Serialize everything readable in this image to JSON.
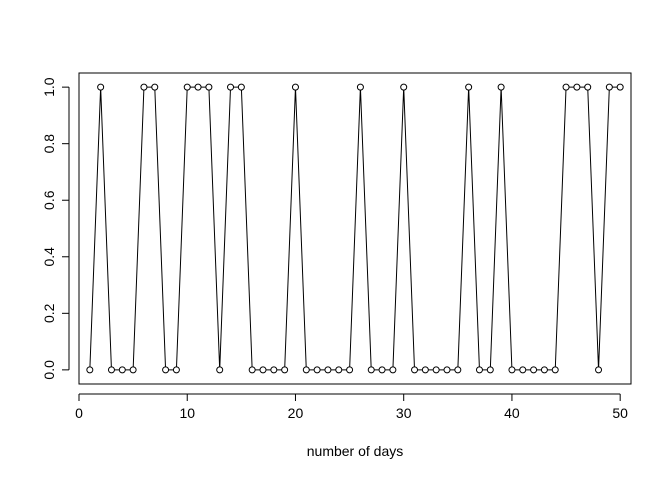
{
  "chart_data": {
    "type": "line",
    "title": "",
    "xlabel": "number of days",
    "ylabel": "",
    "xlim": [
      0,
      51
    ],
    "ylim": [
      -0.05,
      1.05
    ],
    "x_ticks": [
      0,
      10,
      20,
      30,
      40,
      50
    ],
    "y_ticks": [
      0.0,
      0.2,
      0.4,
      0.6,
      0.8,
      1.0
    ],
    "x_tick_labels": [
      "0",
      "10",
      "20",
      "30",
      "40",
      "50"
    ],
    "y_tick_labels": [
      "0.0",
      "0.2",
      "0.4",
      "0.6",
      "0.8",
      "1.0"
    ],
    "grid": false,
    "legend": "none",
    "marker": "open-circle",
    "series": [
      {
        "x": [
          1,
          2,
          3,
          4,
          5,
          6,
          7,
          8,
          9,
          10,
          11,
          12,
          13,
          14,
          15,
          16,
          17,
          18,
          19,
          20,
          21,
          22,
          23,
          24,
          25,
          26,
          27,
          28,
          29,
          30,
          31,
          32,
          33,
          34,
          35,
          36,
          37,
          38,
          39,
          40,
          41,
          42,
          43,
          44,
          45,
          46,
          47,
          48,
          49,
          50
        ],
        "values": [
          0,
          1,
          0,
          0,
          0,
          1,
          1,
          0,
          0,
          1,
          1,
          1,
          0,
          1,
          1,
          0,
          0,
          0,
          0,
          1,
          0,
          0,
          0,
          0,
          0,
          1,
          0,
          0,
          0,
          1,
          0,
          0,
          0,
          0,
          0,
          1,
          0,
          0,
          1,
          0,
          0,
          0,
          0,
          0,
          1,
          1,
          1,
          0,
          1,
          1
        ]
      }
    ]
  }
}
